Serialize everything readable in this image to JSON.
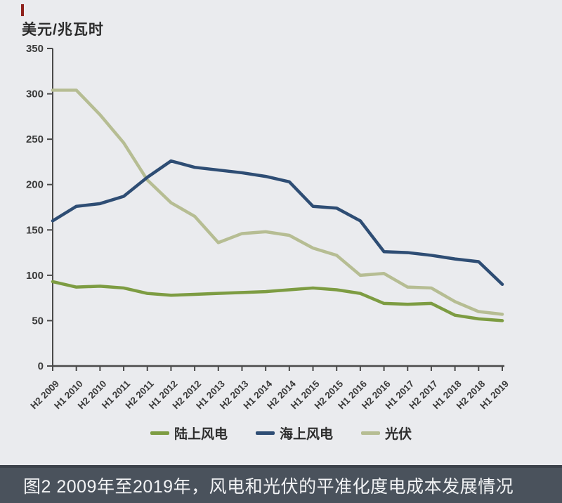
{
  "page": {
    "background_color": "#eaebee",
    "accent_mark_color": "#8e211c",
    "axis_color": "#4a4a4a",
    "tick_label_color": "#3a3a3a"
  },
  "caption": {
    "text": "图2 2009年至2019年，风电和光伏的平准化度电成本发展情况",
    "bar_color": "#4a525c"
  },
  "chart_data": {
    "type": "line",
    "title": "",
    "xlabel": "",
    "ylabel": "美元/兆瓦时",
    "ylim": [
      0,
      350
    ],
    "yticks": [
      0,
      50,
      100,
      150,
      200,
      250,
      300,
      350
    ],
    "grid": false,
    "legend_position": "bottom",
    "categories": [
      "H2 2009",
      "H1 2010",
      "H2 2010",
      "H1 2011",
      "H2 2011",
      "H1 2012",
      "H2 2012",
      "H1 2013",
      "H2 2013",
      "H1 2014",
      "H2 2014",
      "H1 2015",
      "H2 2015",
      "H1 2016",
      "H2 2016",
      "H1 2017",
      "H2 2017",
      "H1 2018",
      "H2 2018",
      "H1 2019"
    ],
    "series": [
      {
        "id": "onshore-wind",
        "name": "陆上风电",
        "color": "#7d9c42",
        "values": [
          93,
          87,
          88,
          86,
          80,
          78,
          79,
          80,
          81,
          82,
          84,
          86,
          84,
          80,
          69,
          68,
          69,
          56,
          52,
          50
        ]
      },
      {
        "id": "offshore-wind",
        "name": "海上风电",
        "color": "#2e4d74",
        "values": [
          160,
          176,
          179,
          187,
          208,
          226,
          219,
          216,
          213,
          209,
          203,
          176,
          174,
          160,
          126,
          125,
          122,
          118,
          115,
          90
        ]
      },
      {
        "id": "solar-pv",
        "name": "光伏",
        "color": "#b6bd93",
        "values": [
          304,
          304,
          277,
          246,
          205,
          180,
          165,
          136,
          146,
          148,
          144,
          130,
          122,
          100,
          102,
          87,
          86,
          71,
          60,
          57
        ]
      }
    ]
  }
}
